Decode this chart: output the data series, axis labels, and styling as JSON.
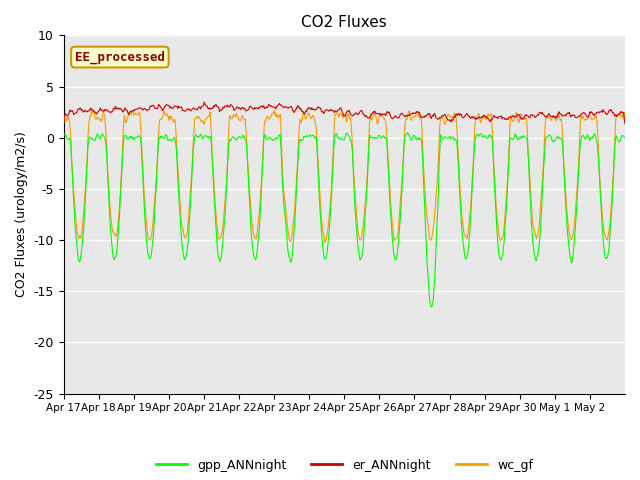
{
  "title": "CO2 Fluxes",
  "ylabel": "CO2 Fluxes (urology/m2/s)",
  "ylim": [
    -25,
    10
  ],
  "yticks": [
    -25,
    -20,
    -15,
    -10,
    -5,
    0,
    5,
    10
  ],
  "background_color": "#ffffff",
  "plot_bg_color": "#e8e8e8",
  "grid_color": "#ffffff",
  "line_colors": {
    "gpp": "#00ff00",
    "er": "#cc0000",
    "wc": "#ff9900"
  },
  "legend_labels": [
    "gpp_ANNnight",
    "er_ANNnight",
    "wc_gf"
  ],
  "annotation_text": "EE_processed",
  "annotation_bg": "#ffffcc",
  "annotation_border": "#cc9900",
  "annotation_text_color": "#880000",
  "n_days": 16,
  "points_per_day": 48,
  "x_labels": [
    "Apr 17",
    "Apr 18",
    "Apr 19",
    "Apr 20",
    "Apr 21",
    "Apr 22",
    "Apr 23",
    "Apr 24",
    "Apr 25",
    "Apr 26",
    "Apr 27",
    "Apr 28",
    "Apr 29",
    "Apr 30",
    "May 1",
    "May 2"
  ]
}
